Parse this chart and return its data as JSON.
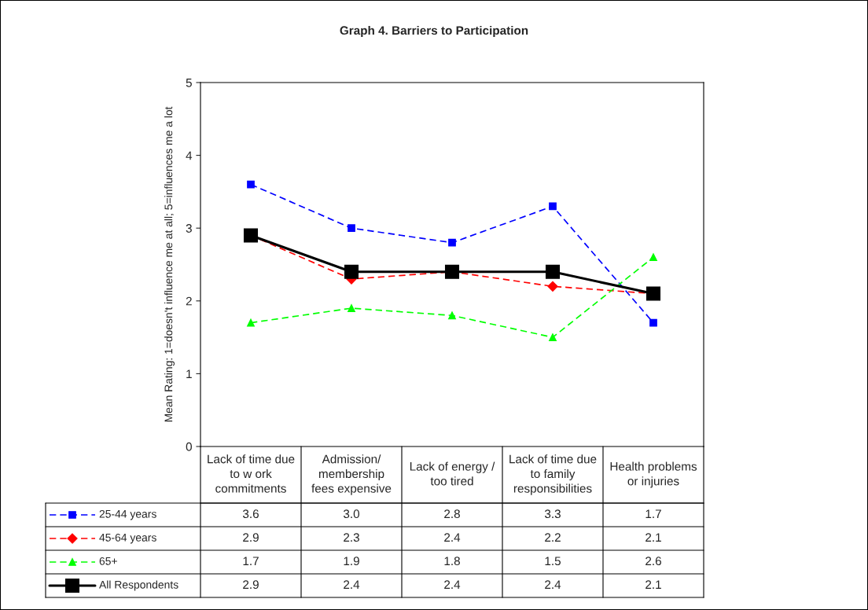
{
  "chart_data": {
    "type": "line",
    "title": "Graph 4. Barriers to Participation",
    "ylabel": "Mean Rating: 1=doesn't influence me at all; 5=influences me a lot",
    "categories": [
      "Lack of time due\nto w ork\ncommitments",
      "Admission/\nmembership\nfees expensive",
      "Lack of energy /\ntoo tired",
      "Lack of time due\nto family\nresponsibilities",
      "Health problems\nor injuries"
    ],
    "series": [
      {
        "name": "25-44 years",
        "color": "#0000ff",
        "marker": "square",
        "line_style": "dashed",
        "values": [
          3.6,
          3.0,
          2.8,
          3.3,
          1.7
        ],
        "value_labels": [
          "3.6",
          "3.0",
          "2.8",
          "3.3",
          "1.7"
        ]
      },
      {
        "name": "45-64 years",
        "color": "#ff0000",
        "marker": "diamond",
        "line_style": "dashed",
        "values": [
          2.9,
          2.3,
          2.4,
          2.2,
          2.1
        ],
        "value_labels": [
          "2.9",
          "2.3",
          "2.4",
          "2.2",
          "2.1"
        ]
      },
      {
        "name": "65+",
        "color": "#00ff00",
        "marker": "triangle",
        "line_style": "dashed",
        "values": [
          1.7,
          1.9,
          1.8,
          1.5,
          2.6
        ],
        "value_labels": [
          "1.7",
          "1.9",
          "1.8",
          "1.5",
          "2.6"
        ]
      },
      {
        "name": "All Respondents",
        "color": "#000000",
        "marker": "square",
        "line_style": "solid",
        "values": [
          2.9,
          2.4,
          2.4,
          2.4,
          2.1
        ],
        "value_labels": [
          "2.9",
          "2.4",
          "2.4",
          "2.4",
          "2.1"
        ]
      }
    ],
    "ylim": [
      0,
      5
    ],
    "yticks": [
      0,
      1,
      2,
      3,
      4,
      5
    ],
    "grid": false,
    "legend": "bottom left"
  }
}
